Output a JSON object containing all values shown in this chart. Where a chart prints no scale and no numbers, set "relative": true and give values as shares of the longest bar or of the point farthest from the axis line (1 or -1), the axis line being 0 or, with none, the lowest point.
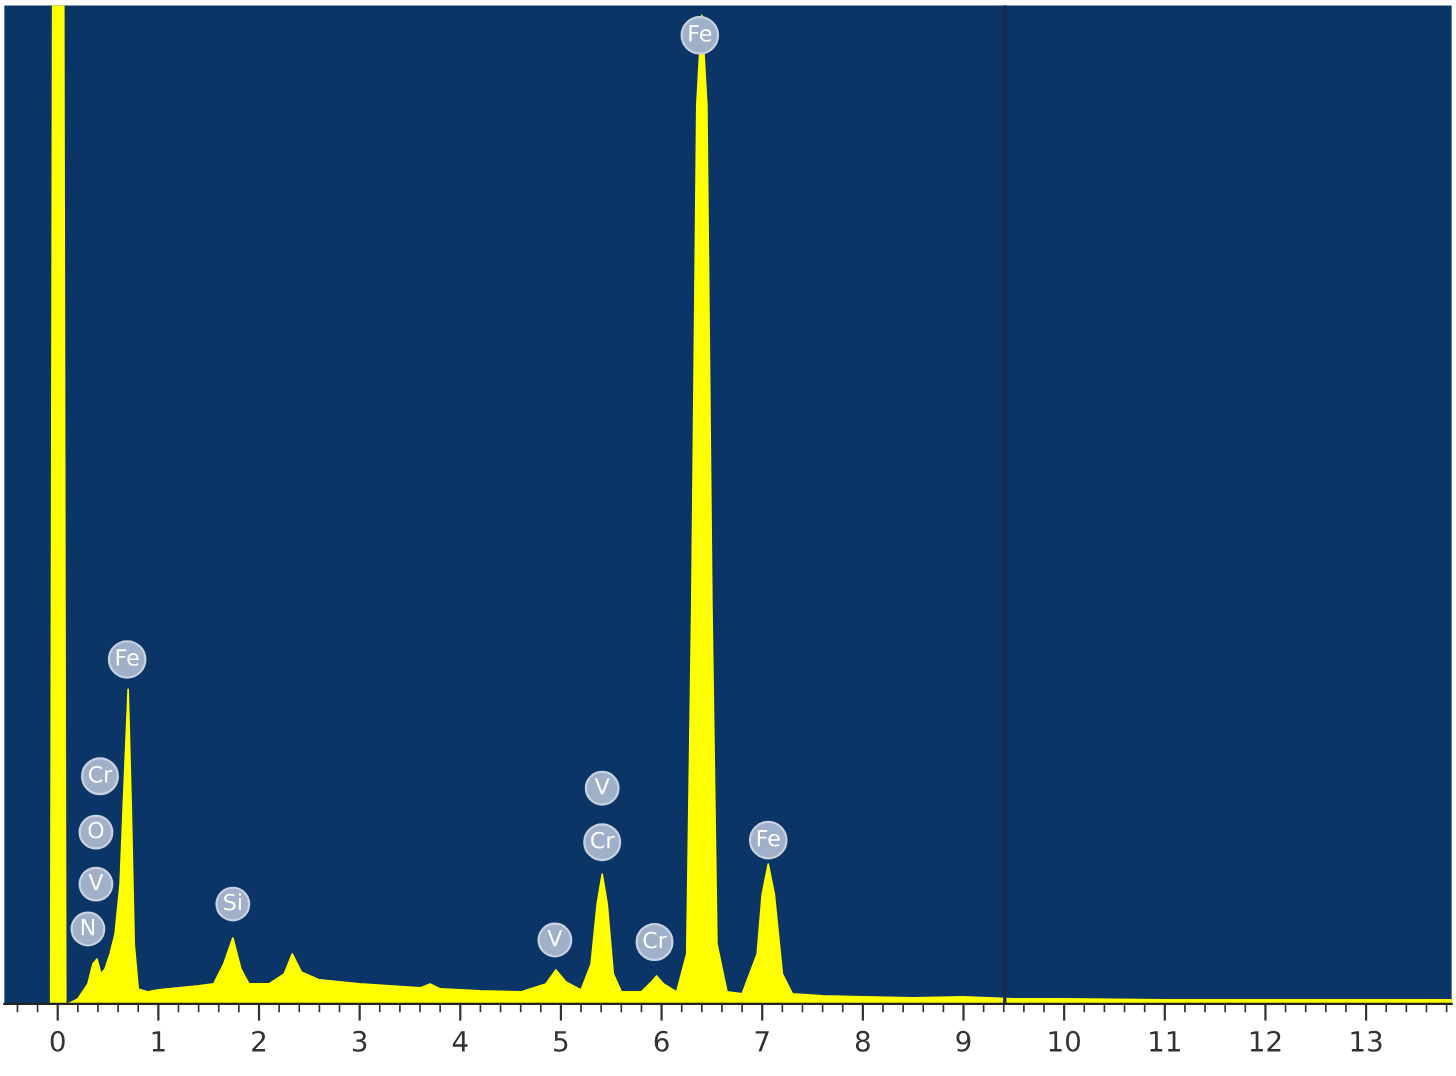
{
  "chart_data": {
    "type": "area",
    "relative": true,
    "color": "#ffff00",
    "x": [
      -0.53,
      -0.07,
      -0.05,
      0.06,
      0.08,
      0.1,
      0.2,
      0.3,
      0.35,
      0.39,
      0.43,
      0.47,
      0.52,
      0.57,
      0.62,
      0.66,
      0.7,
      0.73,
      0.76,
      0.8,
      0.9,
      1.0,
      1.2,
      1.4,
      1.55,
      1.65,
      1.74,
      1.82,
      1.9,
      2.1,
      2.25,
      2.33,
      2.42,
      2.6,
      2.8,
      3.0,
      3.3,
      3.6,
      3.7,
      3.8,
      4.2,
      4.6,
      4.85,
      4.95,
      5.05,
      5.2,
      5.3,
      5.36,
      5.41,
      5.46,
      5.52,
      5.6,
      5.8,
      5.9,
      5.95,
      6.02,
      6.15,
      6.25,
      6.3,
      6.35,
      6.4,
      6.45,
      6.5,
      6.55,
      6.65,
      6.8,
      6.95,
      7.0,
      7.06,
      7.12,
      7.2,
      7.3,
      7.6,
      8.0,
      8.5,
      9.0,
      9.5,
      10.0,
      11.0,
      12.0,
      13.0,
      13.85
    ],
    "values": [
      0,
      0,
      1,
      1,
      0,
      0,
      0.005,
      0.02,
      0.04,
      0.045,
      0.03,
      0.035,
      0.05,
      0.07,
      0.12,
      0.22,
      0.315,
      0.2,
      0.06,
      0.015,
      0.012,
      0.014,
      0.016,
      0.018,
      0.02,
      0.04,
      0.066,
      0.035,
      0.02,
      0.02,
      0.03,
      0.05,
      0.032,
      0.024,
      0.022,
      0.02,
      0.018,
      0.016,
      0.02,
      0.015,
      0.013,
      0.012,
      0.02,
      0.034,
      0.022,
      0.014,
      0.04,
      0.1,
      0.13,
      0.1,
      0.03,
      0.012,
      0.012,
      0.022,
      0.028,
      0.02,
      0.012,
      0.05,
      0.4,
      0.9,
      0.99,
      0.9,
      0.4,
      0.06,
      0.012,
      0.01,
      0.05,
      0.11,
      0.14,
      0.11,
      0.03,
      0.01,
      0.008,
      0.007,
      0.006,
      0.007,
      0.005,
      0.005,
      0.004,
      0.004,
      0.004,
      0.004
    ],
    "xlim": [
      -0.53,
      13.85
    ],
    "xticks": [
      0,
      1,
      2,
      3,
      4,
      5,
      6,
      7,
      8,
      9,
      10,
      11,
      12,
      13
    ],
    "tick_labels": "x",
    "grid": false,
    "ref_lines": [
      {
        "axis": "x",
        "value": 9.41,
        "color": "#1b2b45"
      }
    ],
    "annotations": [
      {
        "text": "Fe",
        "x": 6.38,
        "y": 0.97
      },
      {
        "text": "Fe",
        "x": 0.69,
        "y": 0.345
      },
      {
        "text": "Cr",
        "x": 0.42,
        "y": 0.228
      },
      {
        "text": "O",
        "x": 0.38,
        "y": 0.172
      },
      {
        "text": "V",
        "x": 0.38,
        "y": 0.12
      },
      {
        "text": "N",
        "x": 0.3,
        "y": 0.075
      },
      {
        "text": "Si",
        "x": 1.74,
        "y": 0.1
      },
      {
        "text": "V",
        "x": 4.94,
        "y": 0.064
      },
      {
        "text": "V",
        "x": 5.41,
        "y": 0.216
      },
      {
        "text": "Cr",
        "x": 5.41,
        "y": 0.162
      },
      {
        "text": "Cr",
        "x": 5.93,
        "y": 0.062
      },
      {
        "text": "Fe",
        "x": 7.06,
        "y": 0.164
      }
    ]
  }
}
